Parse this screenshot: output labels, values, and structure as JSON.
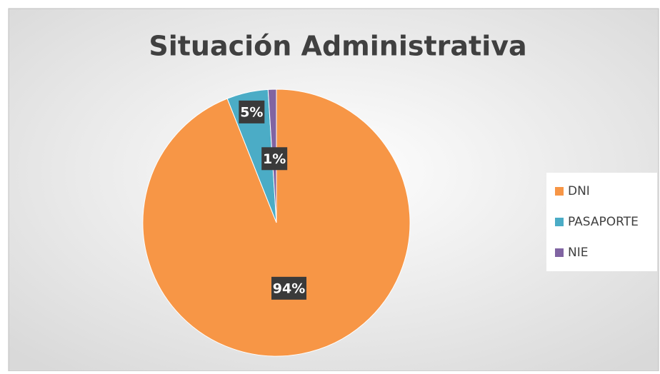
{
  "chart_data": {
    "type": "pie",
    "title": "Situación Administrativa",
    "categories": [
      "DNI",
      "PASAPORTE",
      "NIE"
    ],
    "values": [
      94,
      5,
      1
    ],
    "value_labels": [
      "94%",
      "5%",
      "1%"
    ],
    "colors": [
      "#f79646",
      "#4bacc6",
      "#8064a2"
    ],
    "legend": "right"
  }
}
